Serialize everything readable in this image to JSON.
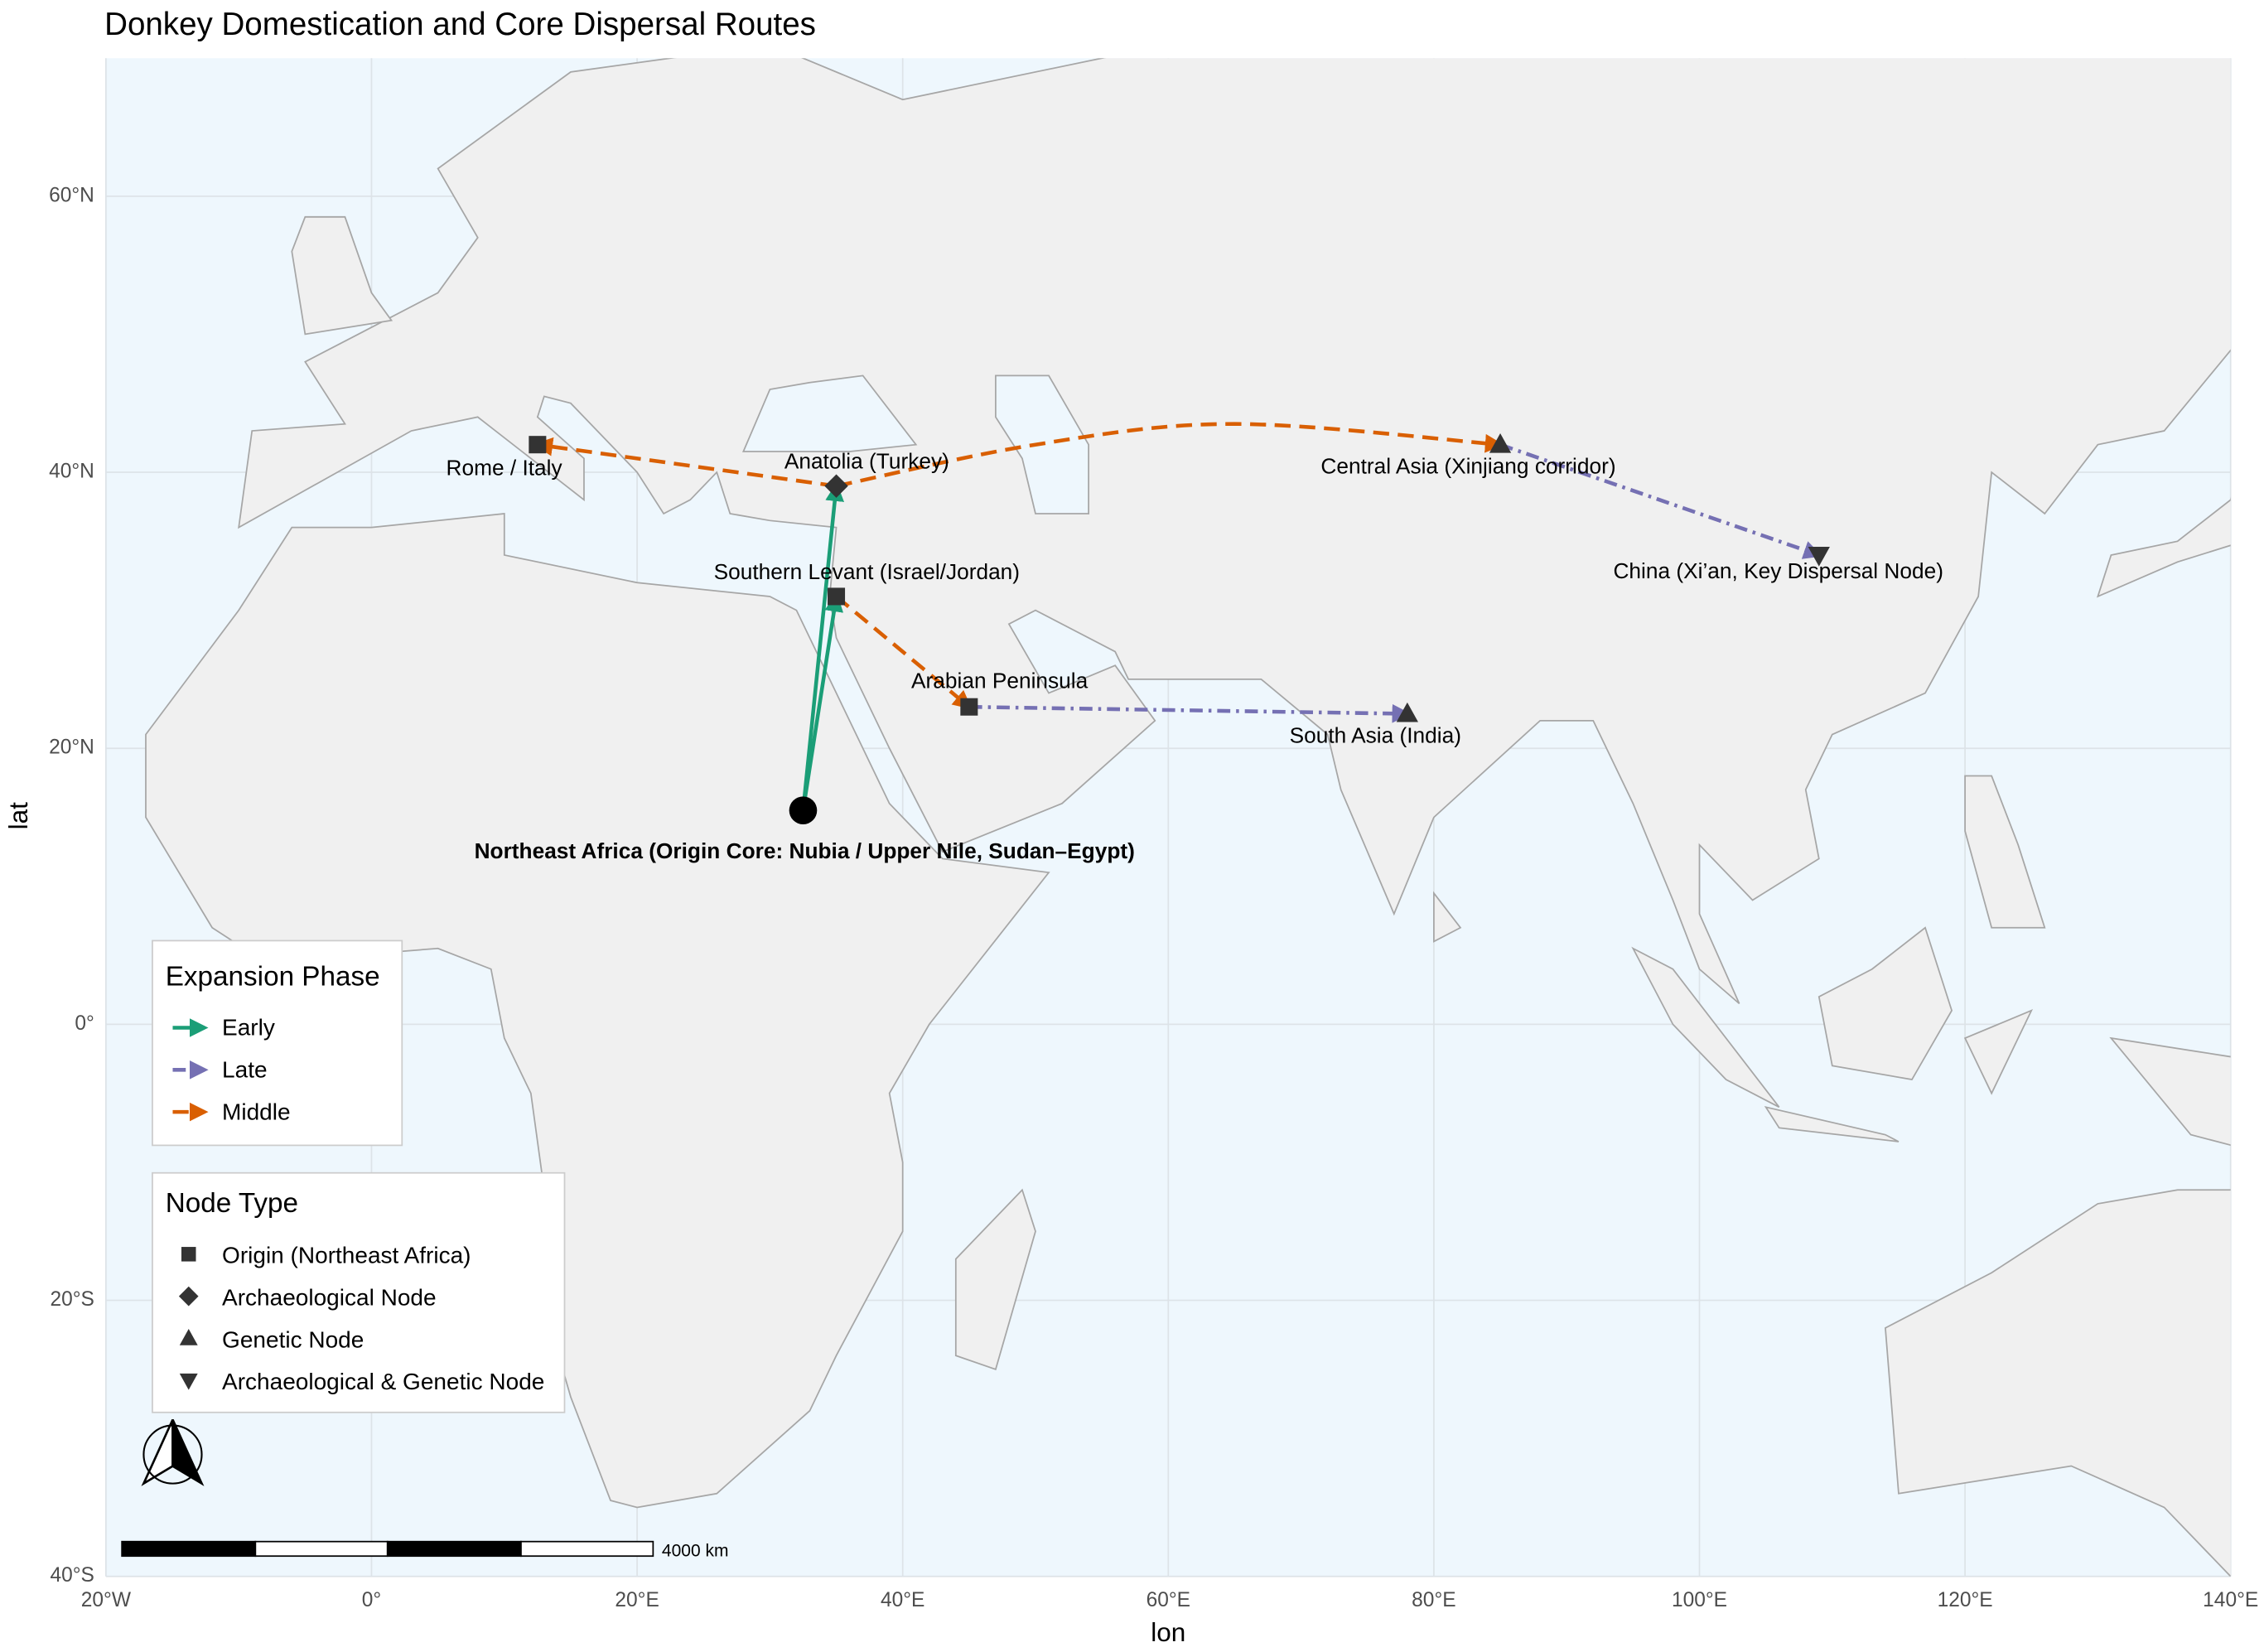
{
  "chart_data": {
    "type": "map",
    "title": "Donkey Domestication and Core Dispersal Routes",
    "x_label": "lon",
    "y_label": "lat",
    "xlim": [
      -20,
      140
    ],
    "ylim": [
      -40,
      70
    ],
    "xticks": [
      {
        "value": -20,
        "label": "20°W"
      },
      {
        "value": 0,
        "label": "0°"
      },
      {
        "value": 20,
        "label": "20°E"
      },
      {
        "value": 40,
        "label": "40°E"
      },
      {
        "value": 60,
        "label": "60°E"
      },
      {
        "value": 80,
        "label": "80°E"
      },
      {
        "value": 100,
        "label": "100°E"
      },
      {
        "value": 120,
        "label": "120°E"
      },
      {
        "value": 140,
        "label": "140°E"
      }
    ],
    "yticks": [
      {
        "value": -40,
        "label": "40°S"
      },
      {
        "value": -20,
        "label": "20°S"
      },
      {
        "value": 0,
        "label": "0°"
      },
      {
        "value": 20,
        "label": "20°N"
      },
      {
        "value": 40,
        "label": "40°N"
      },
      {
        "value": 60,
        "label": "60°N"
      }
    ],
    "grid": true,
    "phase_legend_title": "Expansion Phase",
    "phases": [
      {
        "name": "Early",
        "color": "#1b9e77",
        "linetype": "solid"
      },
      {
        "name": "Late",
        "color": "#7570b3",
        "linetype": "dotdash"
      },
      {
        "name": "Middle",
        "color": "#d95f02",
        "linetype": "dashed"
      }
    ],
    "node_legend_title": "Node Type",
    "node_types": [
      {
        "name": "Origin (Northeast Africa)",
        "shape": "square"
      },
      {
        "name": "Archaeological Node",
        "shape": "diamond"
      },
      {
        "name": "Genetic Node",
        "shape": "triangle"
      },
      {
        "name": "Archaeological & Genetic Node",
        "shape": "triangle-down"
      }
    ],
    "nodes": [
      {
        "label": "Northeast Africa (Origin Core: Nubia / Upper Nile, Sudan–Egypt)",
        "lon": 32.5,
        "lat": 15.5,
        "shape": "circle",
        "bold": true
      },
      {
        "label": "Anatolia (Turkey)",
        "lon": 35,
        "lat": 39,
        "shape": "diamond"
      },
      {
        "label": "Southern Levant (Israel/Jordan)",
        "lon": 35,
        "lat": 31,
        "shape": "square"
      },
      {
        "label": "Rome / Italy",
        "lon": 12.5,
        "lat": 42,
        "shape": "square"
      },
      {
        "label": "Arabian Peninsula",
        "lon": 45,
        "lat": 23,
        "shape": "square"
      },
      {
        "label": "Central Asia (Xinjiang corridor)",
        "lon": 85,
        "lat": 42,
        "shape": "triangle"
      },
      {
        "label": "South Asia (India)",
        "lon": 78,
        "lat": 22.5,
        "shape": "triangle"
      },
      {
        "label": "China (Xi’an, Key Dispersal Node)",
        "lon": 109,
        "lat": 34,
        "shape": "triangle-down"
      }
    ],
    "routes": [
      {
        "phase": 0,
        "lon": [
          32.5,
          35
        ],
        "lat": [
          15.5,
          31
        ]
      },
      {
        "phase": 0,
        "lon": [
          32.5,
          35
        ],
        "lat": [
          15.5,
          39
        ]
      },
      {
        "phase": 2,
        "lon": [
          35,
          12.5
        ],
        "lat": [
          39,
          42
        ]
      },
      {
        "phase": 2,
        "lon": [
          35,
          50,
          65,
          85
        ],
        "lat": [
          39,
          42,
          43.5,
          42
        ]
      },
      {
        "phase": 2,
        "lon": [
          35,
          45
        ],
        "lat": [
          31,
          23
        ]
      },
      {
        "phase": 1,
        "lon": [
          85,
          109
        ],
        "lat": [
          42,
          34
        ]
      },
      {
        "phase": 1,
        "lon": [
          45,
          78
        ],
        "lat": [
          23,
          22.5
        ]
      }
    ],
    "scale_label": "4000 km"
  }
}
